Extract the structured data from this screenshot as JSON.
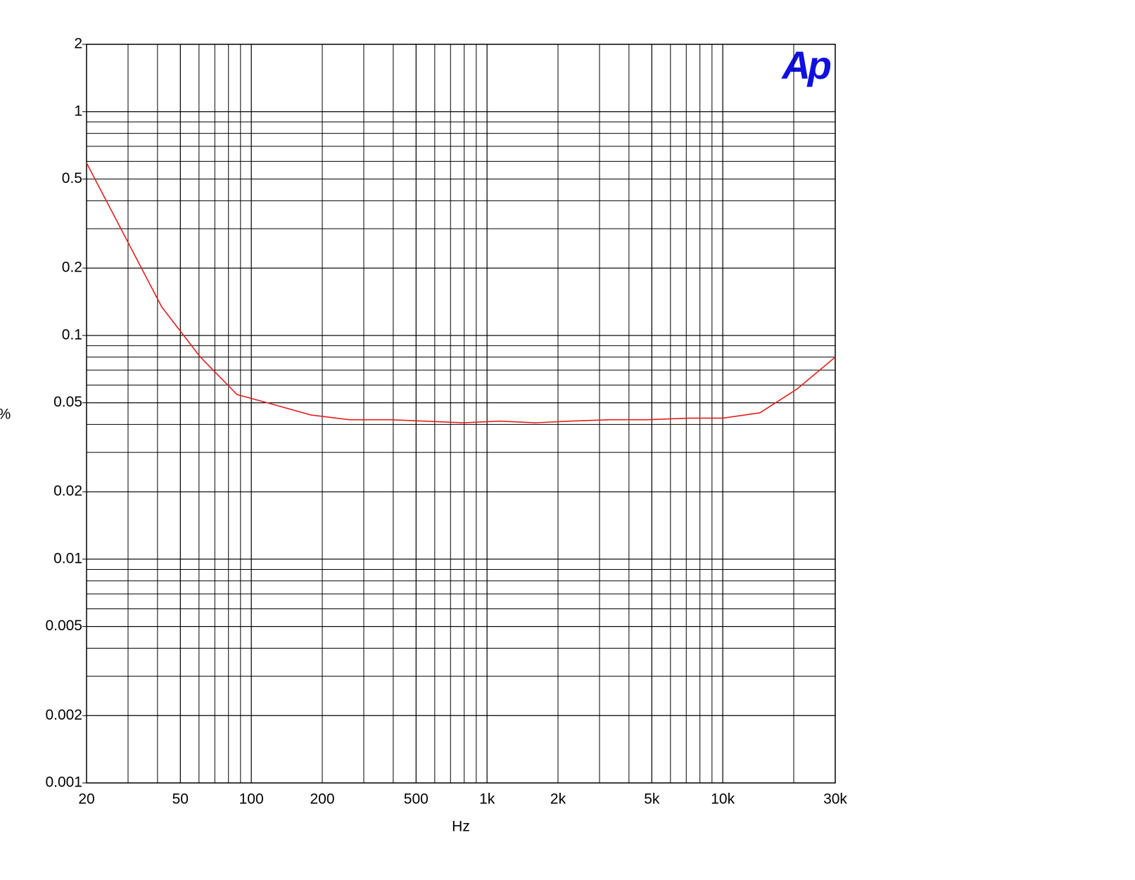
{
  "chart_data": {
    "type": "line",
    "logo": "Ap",
    "xlabel": "Hz",
    "ylabel": "%",
    "xscale": "log",
    "yscale": "log",
    "grid": true,
    "xlim": [
      20,
      30000
    ],
    "ylim": [
      0.001,
      2
    ],
    "xticks": [
      20,
      50,
      100,
      200,
      500,
      {
        "value": 1000,
        "label": "1k"
      },
      {
        "value": 2000,
        "label": "2k"
      },
      {
        "value": 5000,
        "label": "5k"
      },
      {
        "value": 10000,
        "label": "10k"
      },
      {
        "value": 30000,
        "label": "30k"
      }
    ],
    "yticks": [
      0.001,
      0.002,
      0.005,
      0.01,
      0.02,
      0.05,
      0.1,
      0.2,
      0.5,
      1,
      2
    ],
    "x": [
      20,
      41.7,
      60.5,
      87,
      121,
      179,
      261,
      390,
      791,
      1130,
      1615,
      2247,
      3300,
      4780,
      7230,
      10000,
      14380,
      20700,
      30000
    ],
    "series": [
      {
        "color": "#e02020",
        "values": [
          0.59,
          0.134,
          0.0805,
          0.0544,
          0.0495,
          0.0441,
          0.042,
          0.042,
          0.0407,
          0.0414,
          0.0407,
          0.0414,
          0.042,
          0.042,
          0.0427,
          0.0427,
          0.0451,
          0.0577,
          0.08
        ]
      }
    ]
  }
}
